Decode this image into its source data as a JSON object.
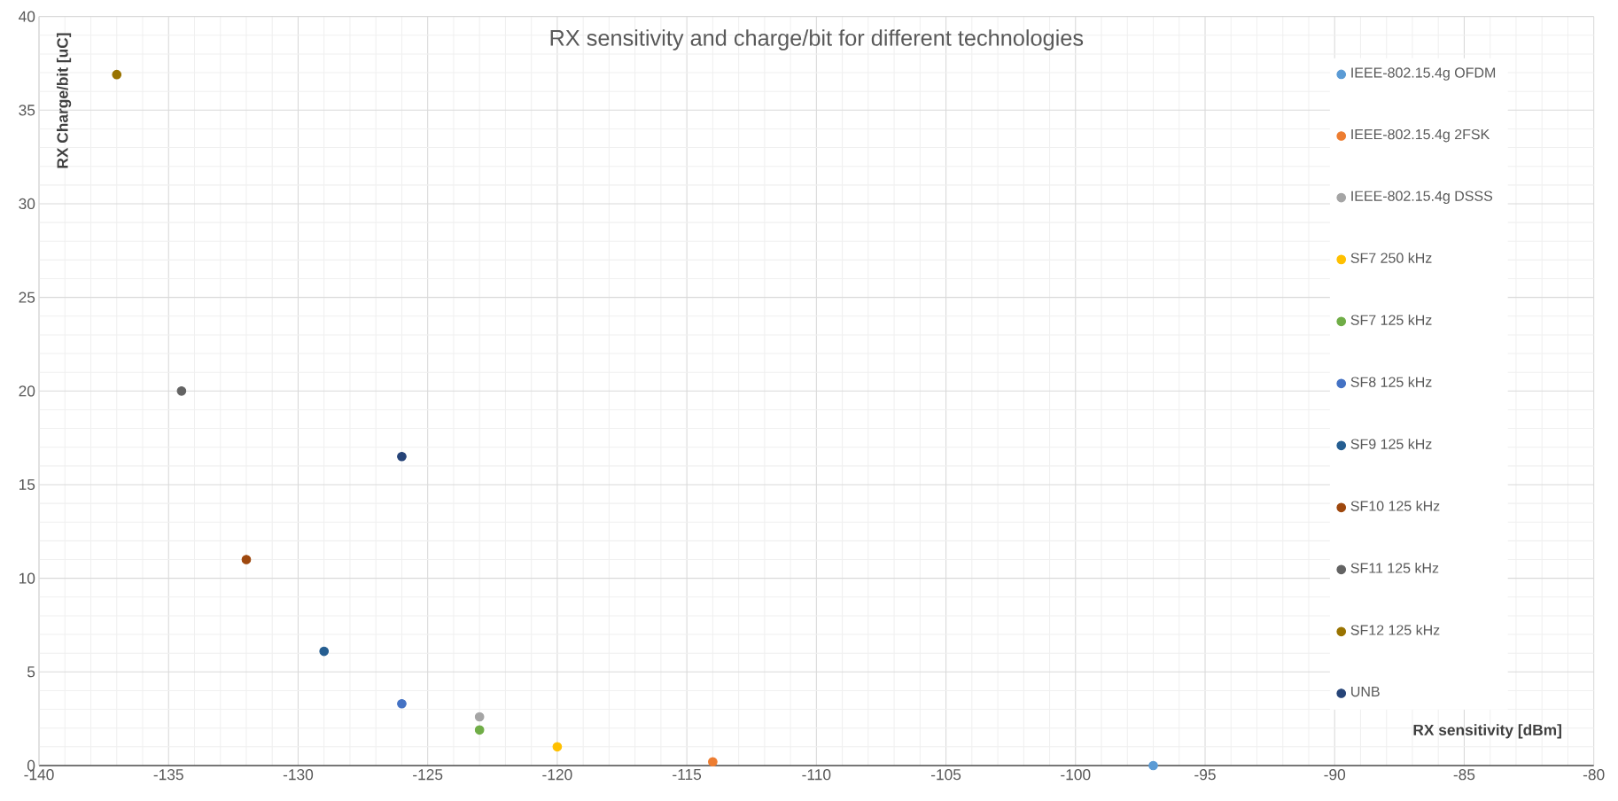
{
  "chart_data": {
    "type": "scatter",
    "title": "RX sensitivity and charge/bit for different technologies",
    "xlabel": "RX sensitivity [dBm]",
    "ylabel": "RX Charge/bit [uC]",
    "xlim": [
      -140,
      -80
    ],
    "xticks": [
      -140,
      -135,
      -130,
      -125,
      -120,
      -115,
      -110,
      -105,
      -100,
      -95,
      -90,
      -85,
      -80
    ],
    "ylim": [
      0,
      40
    ],
    "yticks": [
      0,
      5,
      10,
      15,
      20,
      25,
      30,
      35,
      40
    ],
    "grid": true,
    "legend": "right",
    "marker": "circle",
    "series": [
      {
        "name": "IEEE-802.15.4g OFDM",
        "color": "#5b9bd5",
        "x": [
          -97
        ],
        "values": [
          0
        ]
      },
      {
        "name": "IEEE-802.15.4g 2FSK",
        "color": "#ed7d31",
        "x": [
          -114
        ],
        "values": [
          0.2
        ]
      },
      {
        "name": "IEEE-802.15.4g DSSS",
        "color": "#a5a5a5",
        "x": [
          -123
        ],
        "values": [
          2.6
        ]
      },
      {
        "name": "SF7 250 kHz",
        "color": "#ffc000",
        "x": [
          -120
        ],
        "values": [
          1
        ]
      },
      {
        "name": "SF7 125 kHz",
        "color": "#70ad47",
        "x": [
          -123
        ],
        "values": [
          1.9
        ]
      },
      {
        "name": "SF8 125 kHz",
        "color": "#4472c4",
        "x": [
          -126
        ],
        "values": [
          3.3
        ]
      },
      {
        "name": "SF9 125 kHz",
        "color": "#255e91",
        "x": [
          -129
        ],
        "values": [
          6.1
        ]
      },
      {
        "name": "SF10 125 kHz",
        "color": "#9e480e",
        "x": [
          -132
        ],
        "values": [
          11
        ]
      },
      {
        "name": "SF11 125 kHz",
        "color": "#636363",
        "x": [
          -134.5
        ],
        "values": [
          20
        ]
      },
      {
        "name": "SF12 125 kHz",
        "color": "#997300",
        "x": [
          -137
        ],
        "values": [
          36.9
        ]
      },
      {
        "name": "UNB",
        "color": "#264478",
        "x": [
          -126
        ],
        "values": [
          16.5
        ]
      }
    ]
  }
}
